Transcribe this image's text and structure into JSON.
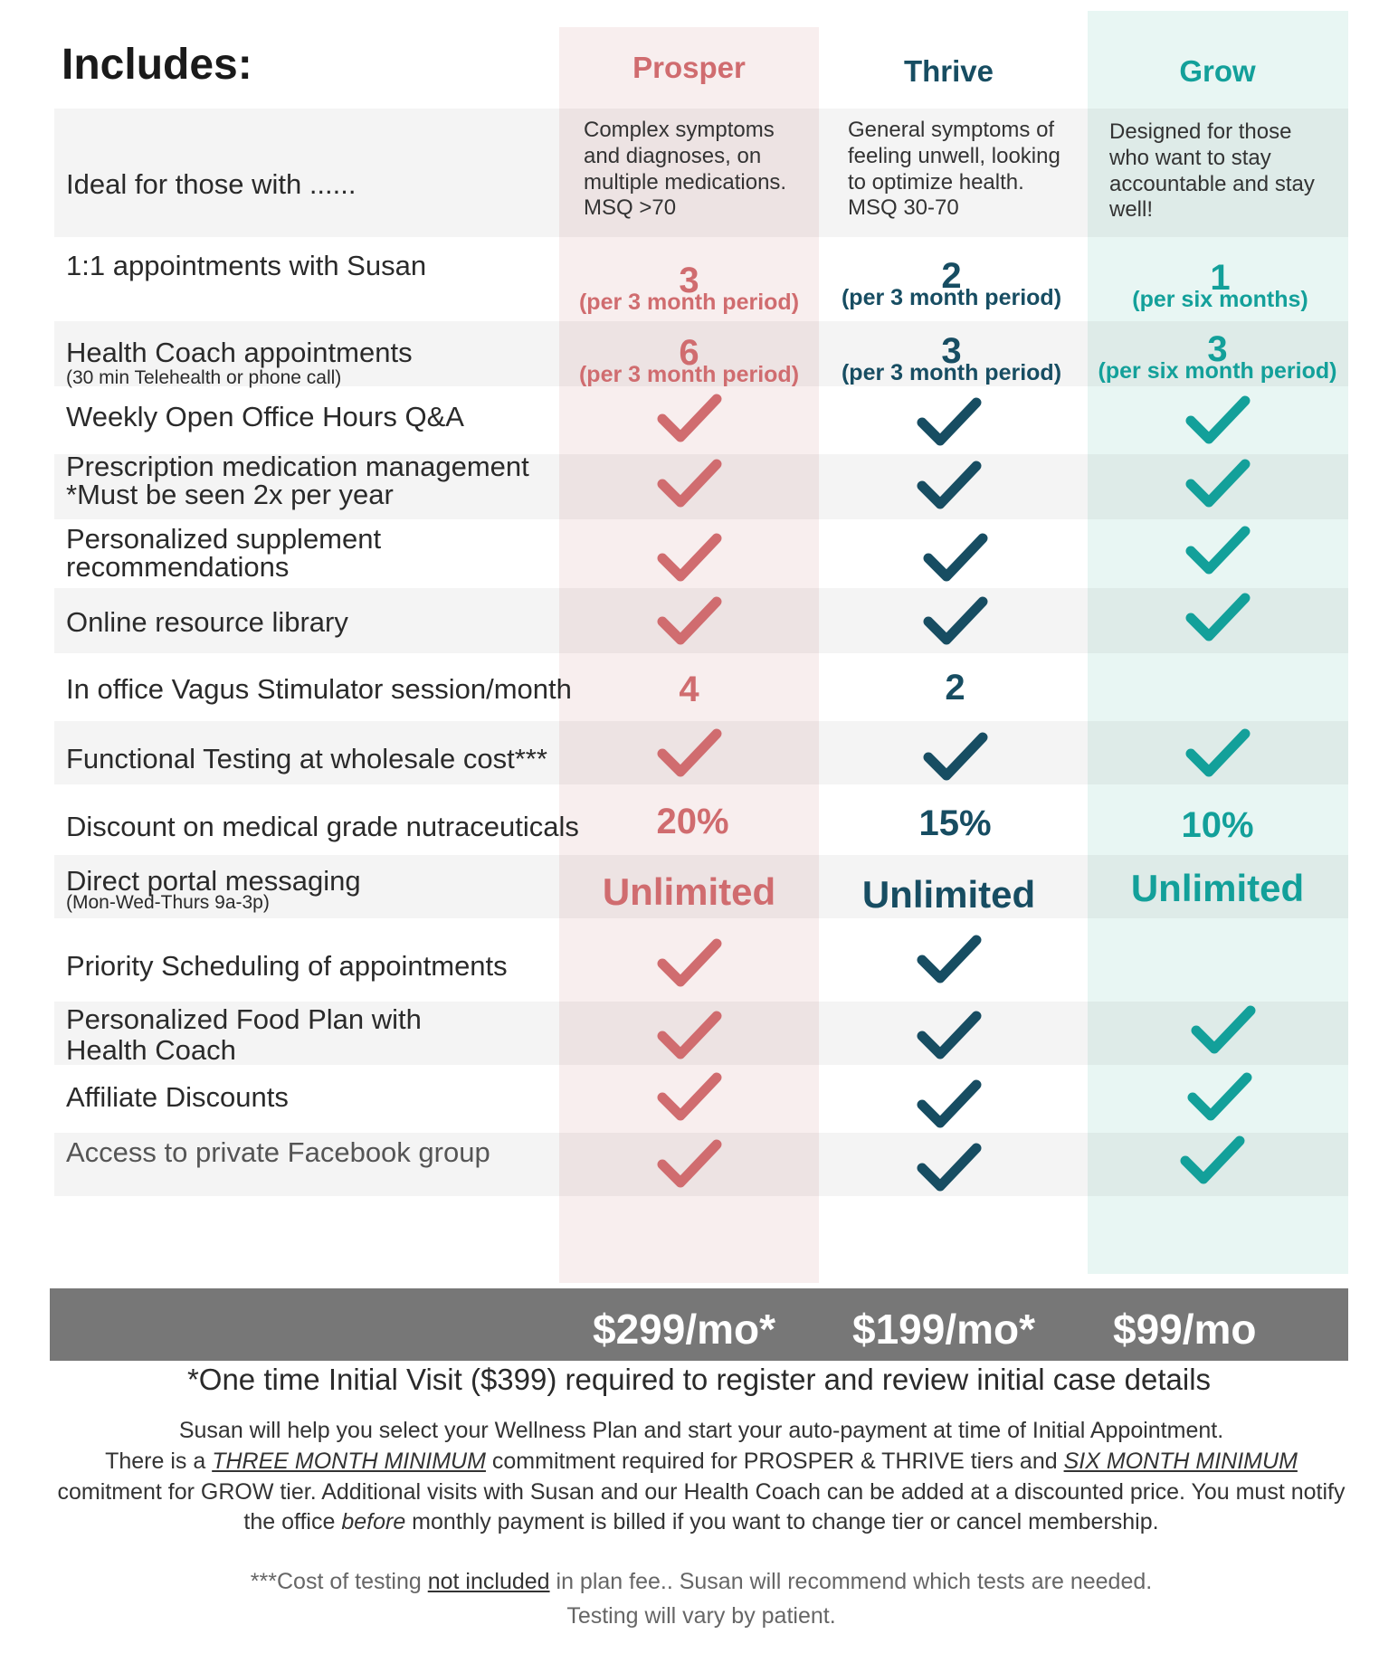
{
  "title": "Includes:",
  "tiers": [
    {
      "name": "Prosper",
      "color": "#d06c6f"
    },
    {
      "name": "Thrive",
      "color": "#174d62"
    },
    {
      "name": "Grow",
      "color": "#13a09a"
    }
  ],
  "ideal": {
    "label": "Ideal for those with ......",
    "prosper": "Complex symptoms and diagnoses, on multiple medications. MSQ >70",
    "thrive": "General symptoms of feeling unwell, looking to optimize health. MSQ 30-70",
    "grow": "Designed for those who want to stay accountable and stay well!"
  },
  "rows": {
    "appointments": {
      "label": "1:1 appointments with Susan",
      "prosper_num": "3",
      "prosper_per": "(per 3 month period)",
      "thrive_num": "2",
      "thrive_per": "(per 3 month period)",
      "grow_num": "1",
      "grow_per": "(per six months)"
    },
    "health_coach": {
      "label": "Health Coach appointments",
      "sublabel": "(30 min Telehealth or phone call)",
      "prosper_num": "6",
      "prosper_per": "(per 3 month period)",
      "thrive_num": "3",
      "thrive_per": "(per 3 month period)",
      "grow_num": "3",
      "grow_per": "(per six month period)"
    },
    "office_hours": {
      "label": "Weekly Open Office Hours Q&A"
    },
    "prescription": {
      "label": "Prescription medication management",
      "sublabel": "*Must be seen 2x per year"
    },
    "supplements": {
      "label": "Personalized supplement",
      "label2": "recommendations"
    },
    "library": {
      "label": "Online resource library"
    },
    "vagus": {
      "label": "In office Vagus Stimulator session/month",
      "prosper": "4",
      "thrive": "2",
      "grow": ""
    },
    "testing": {
      "label": "Functional Testing at wholesale cost***"
    },
    "discount": {
      "label": "Discount on medical grade nutraceuticals",
      "prosper": "20%",
      "thrive": "15%",
      "grow": "10%"
    },
    "portal": {
      "label": "Direct portal messaging",
      "sublabel": "(Mon-Wed-Thurs 9a-3p)",
      "prosper": "Unlimited",
      "thrive": "Unlimited",
      "grow": "Unlimited"
    },
    "priority": {
      "label": "Priority Scheduling of appointments"
    },
    "food_plan": {
      "label": "Personalized Food Plan with",
      "label2": "Health Coach"
    },
    "affiliate": {
      "label": "Affiliate Discounts"
    },
    "facebook": {
      "label": "Access to private Facebook group"
    }
  },
  "check_icon": "check-icon",
  "prices": {
    "prosper": "$299/mo*",
    "thrive": "$199/mo*",
    "grow": "$99/mo"
  },
  "initial_visit_note": "*One time Initial Visit ($399) required to register and review initial case details",
  "paragraph": {
    "p1": "Susan will help you select your Wellness Plan and start your auto-payment at time of Initial Appointment.",
    "p2a": "There is a ",
    "p2_u1": "THREE MONTH MINIMUM",
    "p2b": " commitment required for PROSPER & THRIVE tiers and ",
    "p2_u2": "SIX MONTH MINIMUM",
    "p3": "comitment for GROW tier. Additional visits with Susan and our Health Coach can be added at a discounted price. You must notify the office ",
    "p3_em": "before",
    "p3b": " monthly payment is billed if you want to change tier or cancel membership."
  },
  "footnote": {
    "a": "***Cost of testing ",
    "u": "not included",
    "b": " in plan fee.. Susan will recommend which tests are needed.",
    "line2": "Testing will vary by patient."
  }
}
